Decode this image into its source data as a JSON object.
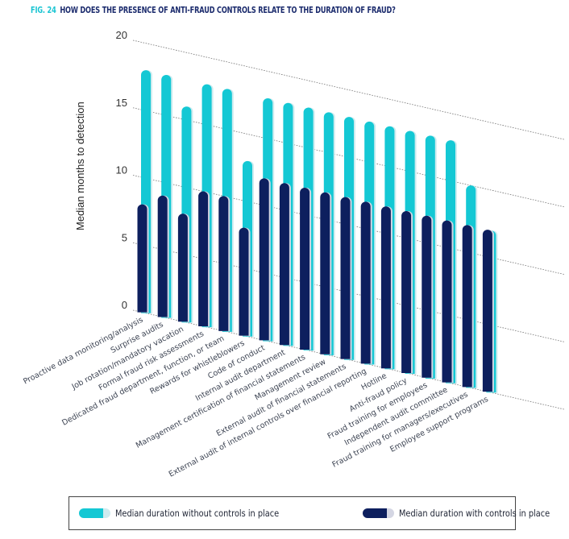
{
  "figure": {
    "fig_label": "FIG. 24",
    "question": "HOW DOES THE PRESENCE OF ANTI-FRAUD CONTROLS RELATE TO THE DURATION OF FRAUD?"
  },
  "colors": {
    "without_controls": "#14c8d4",
    "without_controls_light": "#cdebef",
    "with_controls": "#0d1f5e",
    "with_controls_light": "#d4d6e3",
    "title_fig": "#19c4d2",
    "title_text": "#1a2a6c"
  },
  "legend": {
    "without": "Median duration without controls in place",
    "with": "Median duration with controls in place"
  },
  "chart_data": {
    "type": "bar",
    "title": "How does the presence of anti-fraud controls relate to the duration of fraud?",
    "xlabel": "",
    "ylabel": "Median months to detection",
    "ylim": [
      0,
      20
    ],
    "yticks": [
      0,
      5,
      10,
      15,
      20
    ],
    "grid": true,
    "legend_position": "bottom",
    "categories": [
      "Proactive data monitoring/analysis",
      "Surprise audits",
      "Job rotation/mandatory vacation",
      "Formal fraud risk assessments",
      "Dedicated fraud department, function, or team",
      "Rewards for whistleblowers",
      "Code of conduct",
      "Internal audit department",
      "Management certification of financial statements",
      "Management review",
      "External audit of financial statements",
      "External audit of internal controls over financial reporting",
      "Hotline",
      "Anti-fraud policy",
      "Fraud training for employees",
      "Independent audit committee",
      "Fraud training for managers/executives",
      "Employee support programs"
    ],
    "series": [
      {
        "name": "Median duration without controls in place",
        "values": [
          18,
          18,
          16,
          18,
          18,
          13,
          18,
          18,
          18,
          18,
          18,
          18,
          18,
          18,
          18,
          18,
          15,
          12
        ]
      },
      {
        "name": "Median duration with controls in place",
        "values": [
          8,
          9,
          8,
          10,
          10,
          8,
          12,
          12,
          12,
          12,
          12,
          12,
          12,
          12,
          12,
          12,
          12,
          12
        ]
      }
    ]
  }
}
